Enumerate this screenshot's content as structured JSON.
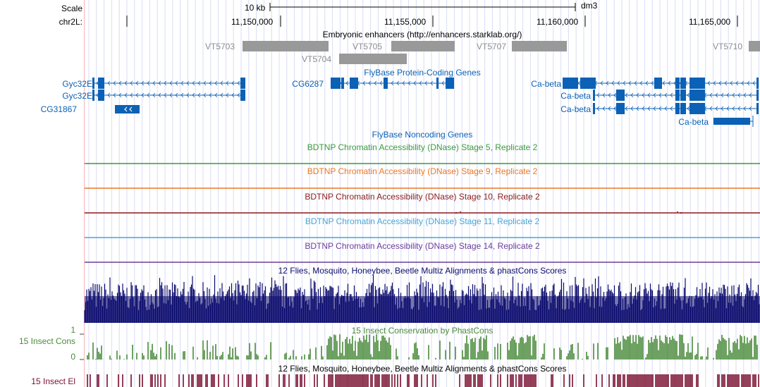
{
  "ruler": {
    "scale_label": "Scale",
    "chrom_label": "chr2L:",
    "scale_text": "10 kb",
    "assembly": "dm3",
    "positions": [
      "11,150,000",
      "11,155,000",
      "11,160,000",
      "11,165,000"
    ]
  },
  "tracks": {
    "enhancers": {
      "title": "Embryonic enhancers (http://enhancers.starklab.org/)",
      "items": [
        "VT5703",
        "VT5704",
        "VT5705",
        "VT5707",
        "VT5710"
      ]
    },
    "genes": {
      "title": "FlyBase Protein-Coding Genes",
      "items": [
        "Gyc32E",
        "Gyc32E",
        "CG31867",
        "CG6287",
        "Ca-beta",
        "Ca-beta",
        "Ca-beta",
        "Ca-beta"
      ]
    },
    "noncoding": {
      "title": "FlyBase Noncoding Genes"
    },
    "dnase": [
      {
        "title": "BDTNP Chromatin Accessibility (DNase) Stage 5, Replicate 2",
        "color": "#3a9a3a"
      },
      {
        "title": "BDTNP Chromatin Accessibility (DNase) Stage 9, Replicate 2",
        "color": "#ee7722"
      },
      {
        "title": "BDTNP Chromatin Accessibility (DNase) Stage 10, Replicate 2",
        "color": "#8b1a1a"
      },
      {
        "title": "BDTNP Chromatin Accessibility (DNase) Stage 11, Replicate 2",
        "color": "#45a6d6"
      },
      {
        "title": "BDTNP Chromatin Accessibility (DNase) Stage 14, Replicate 2",
        "color": "#6a3d9a"
      }
    ],
    "multiz": {
      "title": "12 Flies, Mosquito, Honeybee, Beetle Multiz Alignments & phastCons Scores",
      "color": "#0a0a6e"
    },
    "phastcons": {
      "title": "15 Insect Conservation by PhastCons",
      "side_label": "15 Insect Cons",
      "scale_max": "1",
      "scale_min": "0",
      "color": "#4a8a3a"
    },
    "elements": {
      "title": "12 Flies, Mosquito, Honeybee, Beetle Multiz Alignments & phastCons Scores",
      "side_label": "15 Insect El",
      "color": "#7a1030"
    }
  }
}
